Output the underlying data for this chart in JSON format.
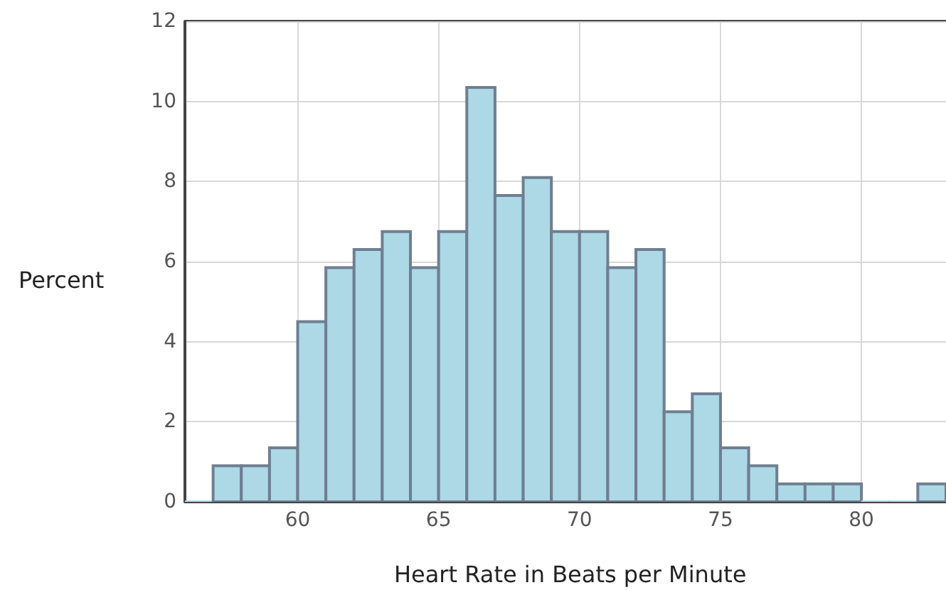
{
  "chart_data": {
    "type": "histogram",
    "xlabel": "Heart Rate in Beats per Minute",
    "ylabel": "Percent",
    "bins": [
      56,
      57,
      58,
      59,
      60,
      61,
      62,
      63,
      64,
      65,
      66,
      67,
      68,
      69,
      70,
      71,
      72,
      73,
      74,
      75,
      76,
      77,
      78,
      79,
      80,
      81,
      82,
      83
    ],
    "values": [
      0,
      0.9,
      0.9,
      1.35,
      4.5,
      5.85,
      6.3,
      6.75,
      5.85,
      6.75,
      10.35,
      7.65,
      8.1,
      6.75,
      6.75,
      5.85,
      6.3,
      2.25,
      2.7,
      1.35,
      0.9,
      0.45,
      0.45,
      0.45,
      0,
      0,
      0.45
    ],
    "color": "#add8e6",
    "xlim": [
      56,
      83
    ],
    "xticks": [
      60,
      65,
      70,
      75,
      80
    ],
    "ylim": [
      0,
      12
    ],
    "yticks": [
      0,
      2,
      4,
      6,
      8,
      10,
      12
    ],
    "grid": true
  }
}
